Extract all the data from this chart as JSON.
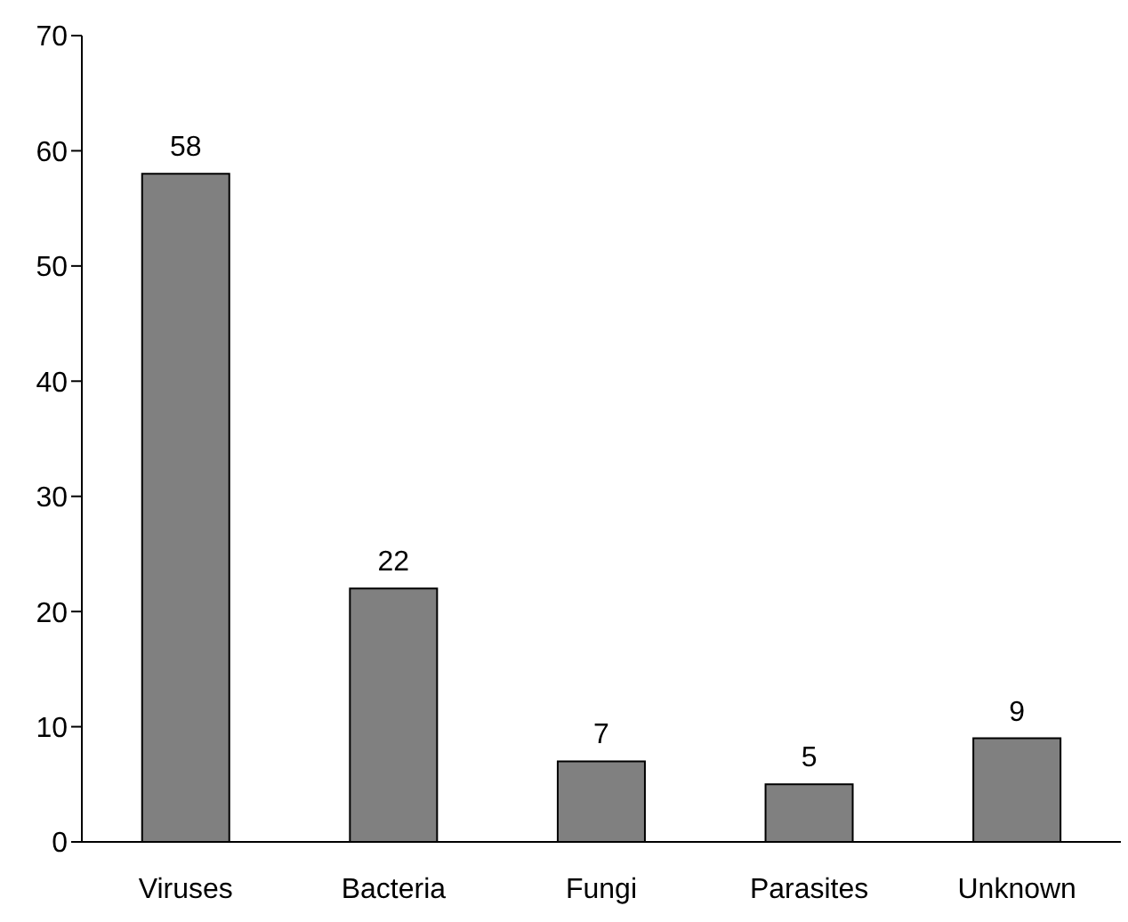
{
  "chart_data": {
    "type": "bar",
    "categories": [
      "Viruses",
      "Bacteria",
      "Fungi",
      "Parasites",
      "Unknown"
    ],
    "values": [
      58,
      22,
      7,
      5,
      9
    ],
    "color": "#808080",
    "ylim": [
      0,
      70
    ],
    "yticks": [
      0,
      10,
      20,
      30,
      40,
      50,
      60,
      70
    ],
    "grid": false,
    "data_labels": true
  }
}
